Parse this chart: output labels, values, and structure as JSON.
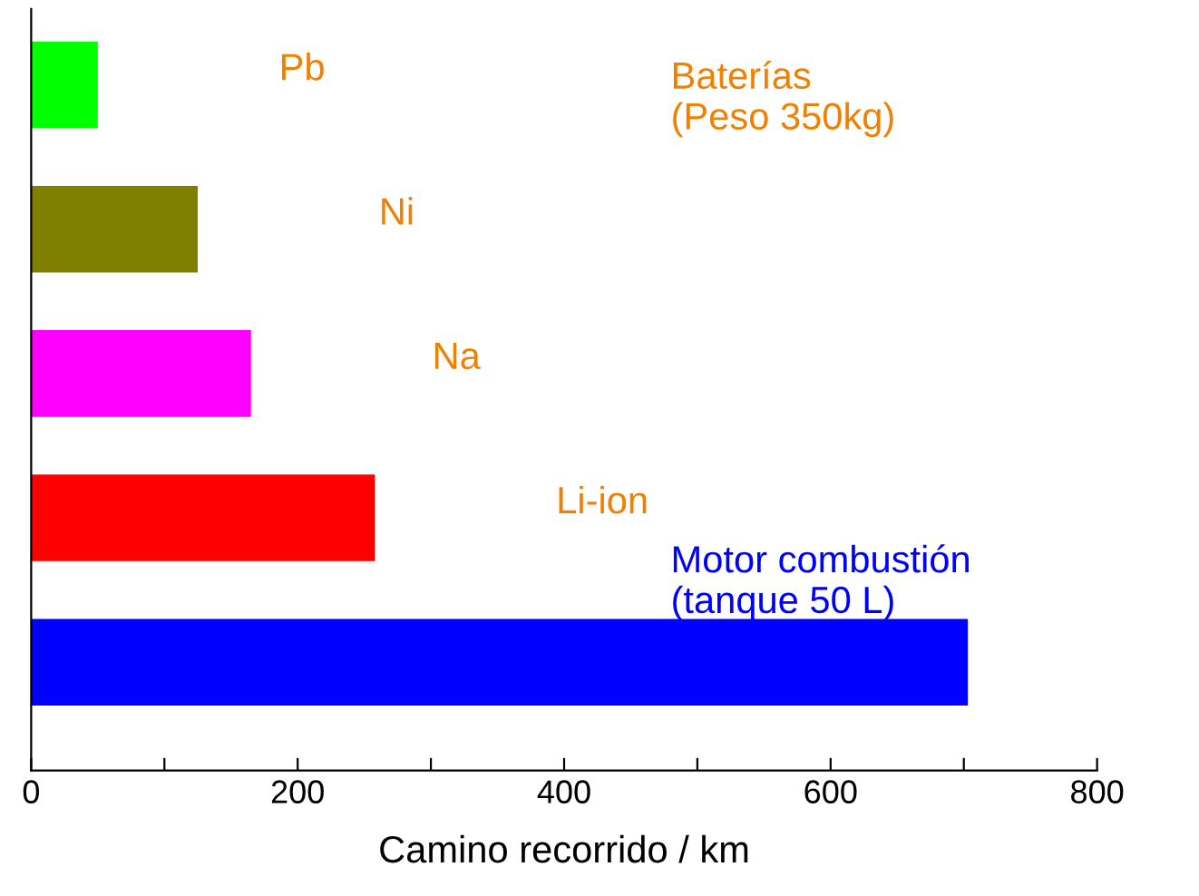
{
  "chart_data": {
    "type": "bar",
    "orientation": "horizontal",
    "xlabel": "Camino recorrido / km",
    "categories": [
      "Pb",
      "Ni",
      "Na",
      "Li-ion",
      null
    ],
    "values": [
      50,
      125,
      165,
      258,
      703
    ],
    "colors": [
      "#00ff00",
      "#808000",
      "#ff00ff",
      "#ff0000",
      "#0000ff"
    ],
    "xlim": [
      0,
      800
    ],
    "xticks": [
      0,
      {
        "value": 100,
        "label": null
      },
      200,
      {
        "value": 300,
        "label": null
      },
      400,
      {
        "value": 500,
        "label": null
      },
      600,
      {
        "value": 700,
        "label": null
      },
      800
    ],
    "tick_labels": "x",
    "grid": false,
    "legend": false,
    "annotations": [
      "Baterías\n(Peso 350kg)",
      "Motor combustión\n(tanque 50 L)"
    ]
  }
}
